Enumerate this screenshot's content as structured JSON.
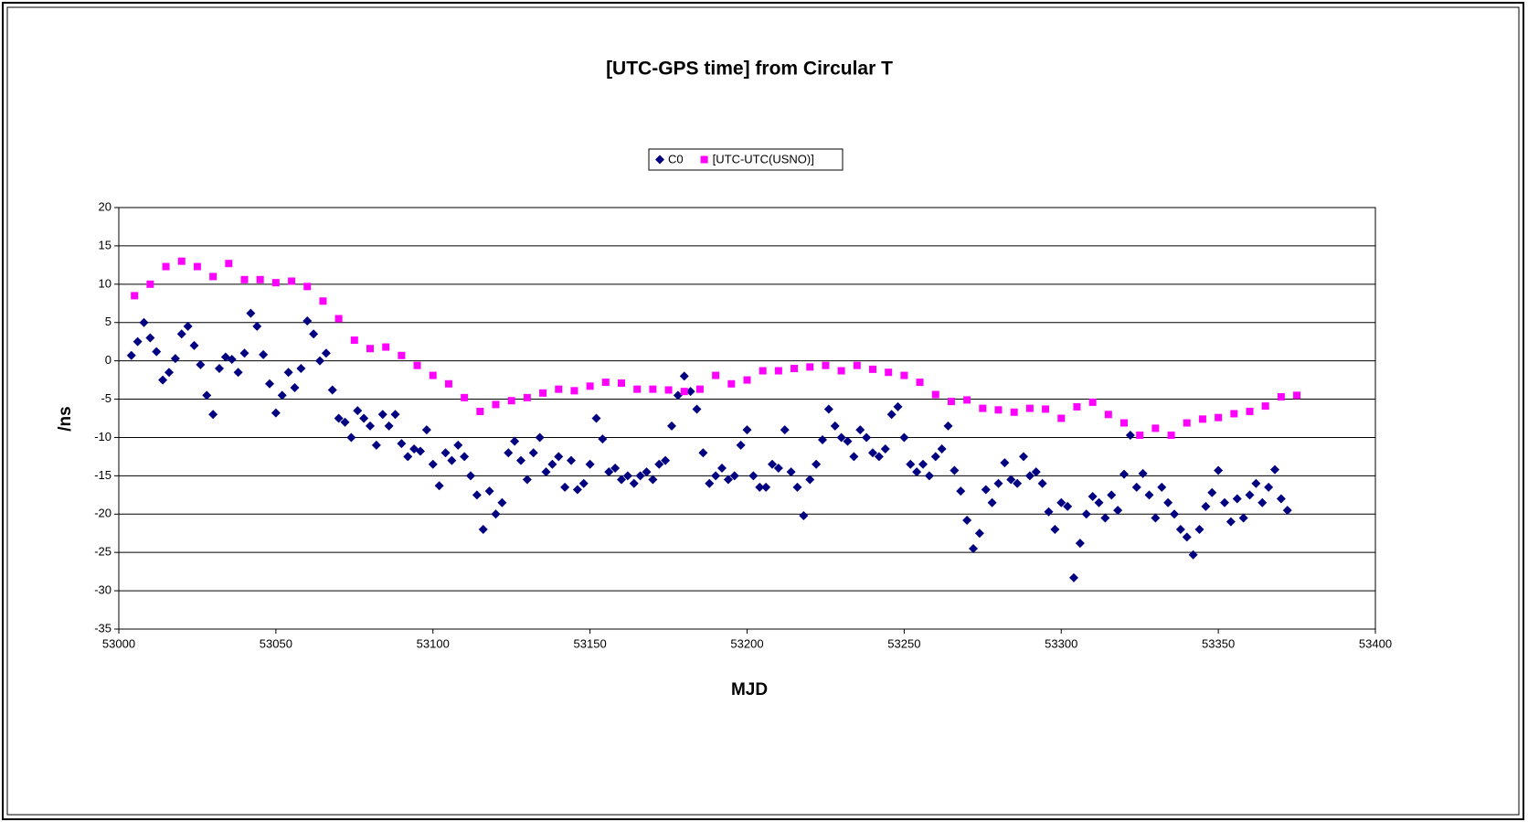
{
  "chart_data": {
    "type": "scatter",
    "title": "[UTC-GPS time] from Circular T",
    "x_label": "MJD",
    "y_label": "/ns",
    "xlim": [
      53000,
      53400
    ],
    "xticks": [
      53000,
      53050,
      53100,
      53150,
      53200,
      53250,
      53300,
      53350,
      53400
    ],
    "ylim": [
      -35,
      20
    ],
    "yticks": [
      -35,
      -30,
      -25,
      -20,
      -15,
      -10,
      -5,
      0,
      5,
      10,
      15,
      20
    ],
    "grid": true,
    "legend": "top",
    "series": [
      {
        "name": "C0",
        "color": "#000080",
        "marker": "diamond",
        "x": [
          53004,
          53006,
          53008,
          53010,
          53012,
          53014,
          53016,
          53018,
          53020,
          53022,
          53024,
          53026,
          53028,
          53030,
          53032,
          53034,
          53036,
          53038,
          53040,
          53042,
          53044,
          53046,
          53048,
          53050,
          53052,
          53054,
          53056,
          53058,
          53060,
          53062,
          53064,
          53066,
          53068,
          53070,
          53072,
          53074,
          53076,
          53078,
          53080,
          53082,
          53084,
          53086,
          53088,
          53090,
          53092,
          53094,
          53096,
          53098,
          53100,
          53102,
          53104,
          53106,
          53108,
          53110,
          53112,
          53114,
          53116,
          53118,
          53120,
          53122,
          53124,
          53126,
          53128,
          53130,
          53132,
          53134,
          53136,
          53138,
          53140,
          53142,
          53144,
          53146,
          53148,
          53150,
          53152,
          53154,
          53156,
          53158,
          53160,
          53162,
          53164,
          53166,
          53168,
          53170,
          53172,
          53174,
          53176,
          53178,
          53180,
          53182,
          53184,
          53186,
          53188,
          53190,
          53192,
          53194,
          53196,
          53198,
          53200,
          53202,
          53204,
          53206,
          53208,
          53210,
          53212,
          53214,
          53216,
          53218,
          53220,
          53222,
          53224,
          53226,
          53228,
          53230,
          53232,
          53234,
          53236,
          53238,
          53240,
          53242,
          53244,
          53246,
          53248,
          53250,
          53252,
          53254,
          53256,
          53258,
          53260,
          53262,
          53264,
          53266,
          53268,
          53270,
          53272,
          53274,
          53276,
          53278,
          53280,
          53282,
          53284,
          53286,
          53288,
          53290,
          53292,
          53294,
          53296,
          53298,
          53300,
          53302,
          53304,
          53306,
          53308,
          53310,
          53312,
          53314,
          53316,
          53318,
          53320,
          53322,
          53324,
          53326,
          53328,
          53330,
          53332,
          53334,
          53336,
          53338,
          53340,
          53342,
          53344,
          53346,
          53348,
          53350,
          53352,
          53354,
          53356,
          53358,
          53360,
          53362,
          53364,
          53366,
          53368,
          53370,
          53372
        ],
        "values": [
          0.7,
          2.5,
          5,
          3,
          1.2,
          -2.5,
          -1.5,
          0.3,
          3.5,
          4.5,
          2,
          -0.5,
          -4.5,
          -7,
          -1,
          0.5,
          0.2,
          -1.5,
          1,
          6.2,
          4.5,
          0.8,
          -3,
          -6.8,
          -4.5,
          -1.5,
          -3.5,
          -1,
          5.2,
          3.5,
          0,
          1,
          -3.8,
          -7.5,
          -8,
          -10,
          -6.5,
          -7.5,
          -8.5,
          -11,
          -7,
          -8.5,
          -7,
          -10.8,
          -12.5,
          -11.5,
          -11.8,
          -9,
          -13.5,
          -16.3,
          -12,
          -13,
          -11,
          -12.5,
          -15,
          -17.5,
          -22,
          -17,
          -20,
          -18.5,
          -12,
          -10.5,
          -13,
          -15.5,
          -12,
          -10,
          -14.5,
          -13.5,
          -12.5,
          -16.5,
          -13,
          -16.8,
          -16,
          -13.5,
          -7.5,
          -10.2,
          -14.5,
          -14,
          -15.5,
          -15,
          -16,
          -15,
          -14.5,
          -15.5,
          -13.5,
          -13,
          -8.5,
          -4.5,
          -2,
          -4,
          -6.3,
          -12,
          -16,
          -15,
          -14,
          -15.5,
          -15,
          -11,
          -9,
          -15,
          -16.5,
          -16.5,
          -13.5,
          -14,
          -9,
          -14.5,
          -16.5,
          -20.2,
          -15.5,
          -13.5,
          -10.3,
          -6.3,
          -8.5,
          -10,
          -10.5,
          -12.5,
          -9,
          -10,
          -12,
          -12.5,
          -11.5,
          -7,
          -6,
          -10,
          -13.5,
          -14.5,
          -13.5,
          -15,
          -12.5,
          -11.5,
          -8.5,
          -14.3,
          -17,
          -20.8,
          -24.5,
          -22.5,
          -16.8,
          -18.5,
          -16,
          -13.3,
          -15.5,
          -16,
          -12.5,
          -15,
          -14.5,
          -16,
          -19.7,
          -22,
          -18.5,
          -19,
          -28.3,
          -23.8,
          -20,
          -17.7,
          -18.5,
          -20.5,
          -17.5,
          -19.5,
          -14.8,
          -9.7,
          -16.5,
          -14.7,
          -17.5,
          -20.5,
          -16.5,
          -18.5,
          -20,
          -22,
          -23,
          -25.3,
          -22,
          -19,
          -17.2,
          -14.3,
          -18.5,
          -21,
          -18,
          -20.5,
          -17.5,
          -16,
          -18.5,
          -16.5,
          -14.2,
          -18,
          -19.5
        ]
      },
      {
        "name": "[UTC-UTC(USNO)]",
        "color": "#ff00ff",
        "marker": "square",
        "x": [
          53005,
          53010,
          53015,
          53020,
          53025,
          53030,
          53035,
          53040,
          53045,
          53050,
          53055,
          53060,
          53065,
          53070,
          53075,
          53080,
          53085,
          53090,
          53095,
          53100,
          53105,
          53110,
          53115,
          53120,
          53125,
          53130,
          53135,
          53140,
          53145,
          53150,
          53155,
          53160,
          53165,
          53170,
          53175,
          53180,
          53185,
          53190,
          53195,
          53200,
          53205,
          53210,
          53215,
          53220,
          53225,
          53230,
          53235,
          53240,
          53245,
          53250,
          53255,
          53260,
          53265,
          53270,
          53275,
          53280,
          53285,
          53290,
          53295,
          53300,
          53305,
          53310,
          53315,
          53320,
          53325,
          53330,
          53335,
          53340,
          53345,
          53350,
          53355,
          53360,
          53365,
          53370,
          53375
        ],
        "values": [
          8.5,
          10,
          12.3,
          13,
          12.3,
          11,
          12.7,
          10.6,
          10.6,
          10.2,
          10.4,
          9.7,
          7.8,
          5.5,
          2.7,
          1.6,
          1.8,
          0.7,
          -0.6,
          -1.9,
          -3,
          -4.8,
          -6.6,
          -5.7,
          -5.2,
          -4.8,
          -4.2,
          -3.7,
          -3.9,
          -3.3,
          -2.8,
          -2.9,
          -3.7,
          -3.7,
          -3.8,
          -4,
          -3.7,
          -1.9,
          -3,
          -2.5,
          -1.3,
          -1.3,
          -1,
          -0.8,
          -0.6,
          -1.3,
          -0.6,
          -1.1,
          -1.5,
          -1.9,
          -2.8,
          -4.4,
          -5.3,
          -5.1,
          -6.2,
          -6.4,
          -6.7,
          -6.2,
          -6.3,
          -7.5,
          -6,
          -5.4,
          -7,
          -8.1,
          -9.7,
          -8.8,
          -9.7,
          -8.1,
          -7.6,
          -7.4,
          -6.9,
          -6.6,
          -5.9,
          -4.7,
          -4.5
        ]
      }
    ]
  }
}
